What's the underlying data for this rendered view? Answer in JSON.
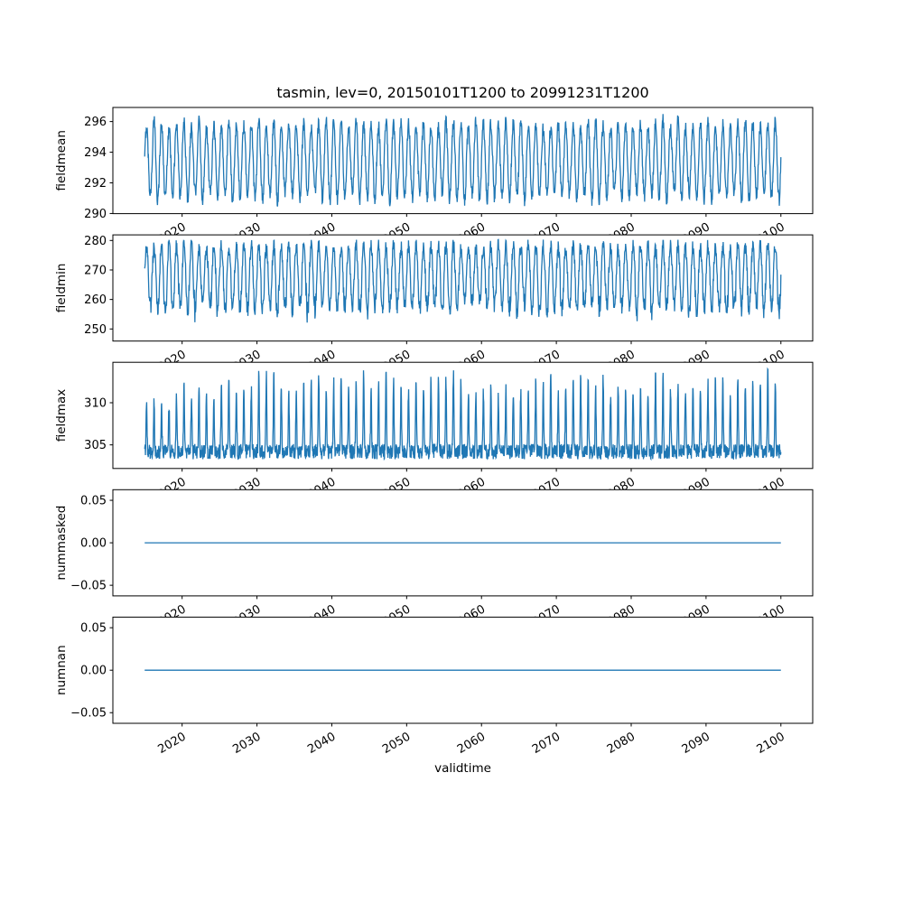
{
  "figure": {
    "title": "tasmin, lev=0, 20150101T1200 to 20991231T1200",
    "xlabel": "validtime",
    "line_color": "#1f77b4",
    "axis_color": "#000000",
    "background": "#ffffff",
    "x_start": 2015,
    "x_end": 2100,
    "xlim": [
      2010.75,
      2104.25
    ],
    "xticks": [
      2020,
      2030,
      2040,
      2050,
      2060,
      2070,
      2080,
      2090,
      2100
    ],
    "xtick_labels": [
      "2020",
      "2030",
      "2040",
      "2050",
      "2060",
      "2070",
      "2080",
      "2090",
      "2100"
    ]
  },
  "chart_data": [
    {
      "type": "line",
      "ylabel": "fieldmean",
      "ylim": [
        289.99,
        296.92
      ],
      "yticks": [
        290,
        292,
        294,
        296
      ],
      "ytick_labels": [
        "290",
        "292",
        "294",
        "296"
      ],
      "series": {
        "name": "fieldmean",
        "pattern": "seasonal",
        "mid": 293.45,
        "amplitude": 2.35,
        "noise": 0.45,
        "points_per_year": 24,
        "approx_min": 290.3,
        "approx_max": 296.6
      }
    },
    {
      "type": "line",
      "ylabel": "fieldmin",
      "ylim": [
        245.9,
        281.9
      ],
      "yticks": [
        250,
        260,
        270,
        280
      ],
      "ytick_labels": [
        "250",
        "260",
        "270",
        "280"
      ],
      "series": {
        "name": "fieldmin",
        "pattern": "seasonal-noisy-troughs",
        "mid": 268.5,
        "amplitude": 9.5,
        "noise": 2.5,
        "trough_extra_noise": 6.0,
        "cap_max": 280.3,
        "points_per_year": 24,
        "approx_min": 247.5,
        "approx_max": 280.3
      }
    },
    {
      "type": "line",
      "ylabel": "fieldmax",
      "ylim": [
        302.2,
        314.8
      ],
      "yticks": [
        305,
        310
      ],
      "ytick_labels": [
        "305",
        "310"
      ],
      "series": {
        "name": "fieldmax",
        "pattern": "baseline-spikes-up",
        "base": 304.2,
        "base_noise": 0.9,
        "spike_amplitude": 6.5,
        "spike_variation": 3.0,
        "spike_sharpness": 6,
        "points_per_year": 30,
        "approx_min": 302.8,
        "approx_max": 314.2
      }
    },
    {
      "type": "line",
      "ylabel": "nummasked",
      "ylim": [
        -0.0625,
        0.0625
      ],
      "yticks": [
        -0.05,
        0.0,
        0.05
      ],
      "ytick_labels": [
        "−0.05",
        "0.00",
        "0.05"
      ],
      "series": {
        "name": "nummasked",
        "pattern": "constant",
        "value": 0.0
      }
    },
    {
      "type": "line",
      "ylabel": "numnan",
      "ylim": [
        -0.0625,
        0.0625
      ],
      "yticks": [
        -0.05,
        0.0,
        0.05
      ],
      "ytick_labels": [
        "−0.05",
        "0.00",
        "0.05"
      ],
      "series": {
        "name": "numnan",
        "pattern": "constant",
        "value": 0.0
      }
    }
  ]
}
